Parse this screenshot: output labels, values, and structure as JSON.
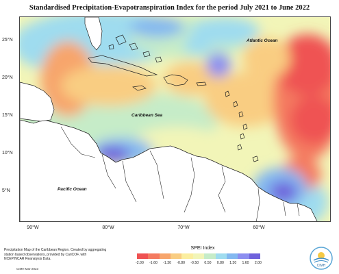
{
  "title": "Standardised Precipitation-Evapotranspiration Index for the period July 2021 to June 2022",
  "map": {
    "latitude_labels": [
      "25°N",
      "20°N",
      "15°N",
      "10°N",
      "5°N"
    ],
    "longitude_labels": [
      "90°W",
      "80°W",
      "70°W",
      "60°W"
    ],
    "place_labels": {
      "atlantic": "Atlantic Ocean",
      "caribbean": "Caribbean Sea",
      "pacific": "Pacific Ocean"
    }
  },
  "legend": {
    "title": "SPEI Index",
    "ticks": [
      "-2.00",
      "-1.60",
      "-1.30",
      "-0.80",
      "-0.50",
      "0.50",
      "0.80",
      "1.30",
      "1.60",
      "2.00"
    ],
    "colors": [
      "#ef5252",
      "#f47a60",
      "#f7a56c",
      "#f9cd82",
      "#fbeea0",
      "#f2f5b8",
      "#c6ecc8",
      "#9fdcef",
      "#83b8f0",
      "#8c8ef0",
      "#6f62dc"
    ]
  },
  "footer": {
    "description": "Precipitation Map of the Caribbean Region. Created by aggregating station based observations, provided by CariCOF, with NCEP/NCAR Reanalysis Data.",
    "date": "CIMH Mar-2023"
  },
  "logo": {
    "text": "CIMH"
  }
}
